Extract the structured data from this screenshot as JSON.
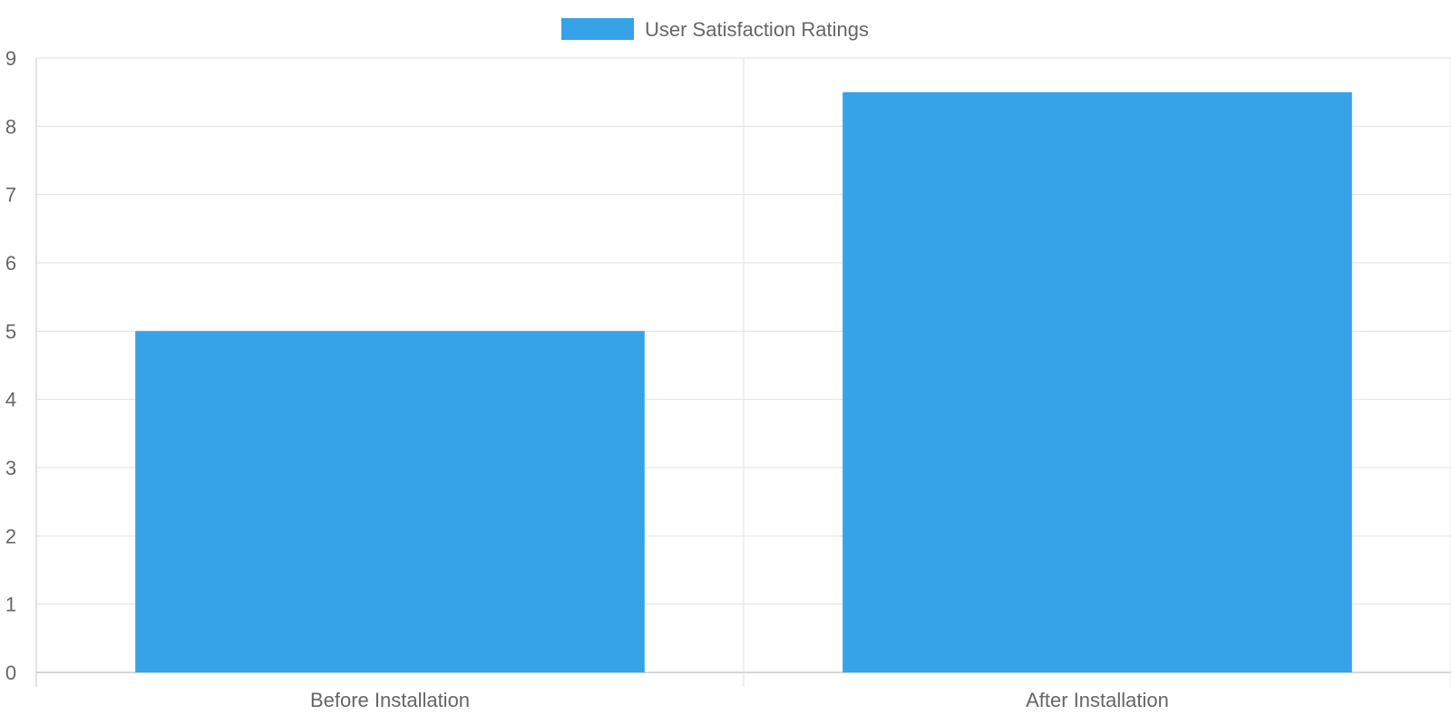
{
  "chart_data": {
    "type": "bar",
    "categories": [
      "Before Installation",
      "After Installation"
    ],
    "series": [
      {
        "name": "User Satisfaction Ratings",
        "values": [
          5,
          8.5
        ],
        "color": "#36a2e8"
      }
    ],
    "ylim": [
      0,
      9
    ],
    "yticks": [
      "0",
      "1",
      "2",
      "3",
      "4",
      "5",
      "6",
      "7",
      "8",
      "9"
    ],
    "grid": true,
    "legend_position": "top-center",
    "colors": {
      "grid": "#e0e0e0",
      "axis": "#c8c8c8",
      "text": "#666666"
    }
  }
}
